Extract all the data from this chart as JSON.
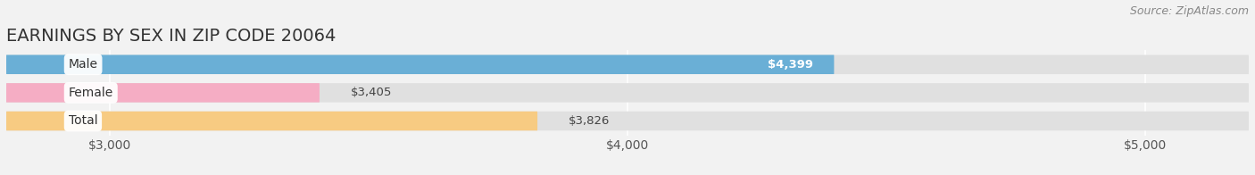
{
  "title": "EARNINGS BY SEX IN ZIP CODE 20064",
  "source": "Source: ZipAtlas.com",
  "categories": [
    "Male",
    "Female",
    "Total"
  ],
  "values": [
    4399,
    3405,
    3826
  ],
  "bar_colors": [
    "#6aafd6",
    "#f5adc4",
    "#f7cb82"
  ],
  "xlim": [
    2800,
    5200
  ],
  "xticks": [
    3000,
    4000,
    5000
  ],
  "xtick_labels": [
    "$3,000",
    "$4,000",
    "$5,000"
  ],
  "value_labels": [
    "$4,399",
    "$3,405",
    "$3,826"
  ],
  "value_label_inside": [
    true,
    false,
    false
  ],
  "title_fontsize": 14,
  "source_fontsize": 9,
  "tick_fontsize": 10,
  "bar_height": 0.68,
  "figsize": [
    14.06,
    1.96
  ],
  "dpi": 100,
  "bg_color": "#f2f2f2",
  "bar_bg_color": "#e0e0e0"
}
